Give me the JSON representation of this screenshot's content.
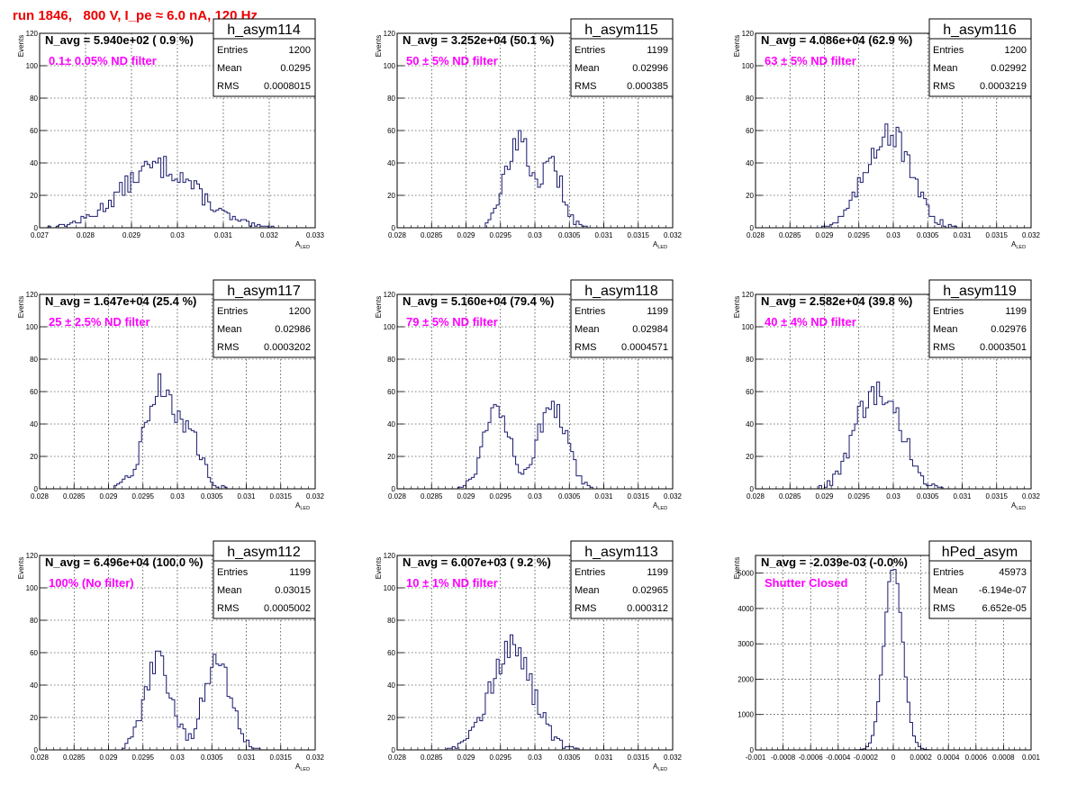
{
  "page_title": "run 1846,   800 V, I_pe ≈ 6.0 nA, 120 Hz",
  "chart_data": [
    {
      "type": "histogram",
      "name": "h_asym114",
      "ylabel": "Events",
      "xlabel": "A_LED",
      "nav": "N_avg = 5.940e+02 ( 0.9 %)",
      "filter": "0.1± 0.05% ND filter",
      "stats": {
        "Entries": "1200",
        "Mean": "0.0295",
        "RMS": "0.0008015"
      },
      "xlim": [
        0.027,
        0.033
      ],
      "ylim": [
        0,
        120
      ],
      "xticks": [
        "0.027",
        "0.028",
        "0.029",
        "0.03",
        "0.031",
        "0.032",
        "0.033"
      ],
      "yticks": [
        "0",
        "20",
        "40",
        "60",
        "80",
        "100",
        "120"
      ],
      "peaks": [
        {
          "mu": 0.0296,
          "sigma": 0.00082,
          "amp": 38
        }
      ]
    },
    {
      "type": "histogram",
      "name": "h_asym115",
      "ylabel": "Events",
      "xlabel": "A_LED",
      "nav": "N_avg = 3.252e+04 (50.1 %)",
      "filter": "50 ± 5% ND filter",
      "stats": {
        "Entries": "1199",
        "Mean": "0.02996",
        "RMS": "0.000385"
      },
      "xlim": [
        0.028,
        0.032
      ],
      "ylim": [
        0,
        120
      ],
      "xticks": [
        "0.028",
        "0.0285",
        "0.029",
        "0.0295",
        "0.03",
        "0.0305",
        "0.031",
        "0.0315",
        "0.032"
      ],
      "yticks": [
        "0",
        "20",
        "40",
        "60",
        "80",
        "100",
        "120"
      ],
      "peaks": [
        {
          "mu": 0.02975,
          "sigma": 0.00018,
          "amp": 55
        },
        {
          "mu": 0.03025,
          "sigma": 0.00016,
          "amp": 36
        }
      ]
    },
    {
      "type": "histogram",
      "name": "h_asym116",
      "ylabel": "Events",
      "xlabel": "A_LED",
      "nav": "N_avg = 4.086e+04 (62.9 %)",
      "filter": "63 ± 5% ND filter",
      "stats": {
        "Entries": "1200",
        "Mean": "0.02992",
        "RMS": "0.0003219"
      },
      "xlim": [
        0.028,
        0.032
      ],
      "ylim": [
        0,
        120
      ],
      "xticks": [
        "0.028",
        "0.0285",
        "0.029",
        "0.0295",
        "0.03",
        "0.0305",
        "0.031",
        "0.0315",
        "0.032"
      ],
      "yticks": [
        "0",
        "20",
        "40",
        "60",
        "80",
        "100",
        "120"
      ],
      "peaks": [
        {
          "mu": 0.02992,
          "sigma": 0.00032,
          "amp": 60
        }
      ]
    },
    {
      "type": "histogram",
      "name": "h_asym117",
      "ylabel": "Events",
      "xlabel": "A_LED",
      "nav": "N_avg = 1.647e+04 (25.4 %)",
      "filter": "25 ± 2.5% ND filter",
      "stats": {
        "Entries": "1200",
        "Mean": "0.02986",
        "RMS": "0.0003202"
      },
      "xlim": [
        0.028,
        0.032
      ],
      "ylim": [
        0,
        120
      ],
      "xticks": [
        "0.028",
        "0.0285",
        "0.029",
        "0.0295",
        "0.03",
        "0.0305",
        "0.031",
        "0.0315",
        "0.032"
      ],
      "yticks": [
        "0",
        "20",
        "40",
        "60",
        "80",
        "100",
        "120"
      ],
      "peaks": [
        {
          "mu": 0.02975,
          "sigma": 0.00022,
          "amp": 62
        },
        {
          "mu": 0.0302,
          "sigma": 0.00018,
          "amp": 26
        }
      ]
    },
    {
      "type": "histogram",
      "name": "h_asym118",
      "ylabel": "Events",
      "xlabel": "A_LED",
      "nav": "N_avg = 5.160e+04 (79.4 %)",
      "filter": "79 ± 5% ND filter",
      "stats": {
        "Entries": "1199",
        "Mean": "0.02984",
        "RMS": "0.0004571"
      },
      "xlim": [
        0.028,
        0.032
      ],
      "ylim": [
        0,
        120
      ],
      "xticks": [
        "0.028",
        "0.0285",
        "0.029",
        "0.0295",
        "0.03",
        "0.0305",
        "0.031",
        "0.0315",
        "0.032"
      ],
      "yticks": [
        "0",
        "20",
        "40",
        "60",
        "80",
        "100",
        "120"
      ],
      "peaks": [
        {
          "mu": 0.02945,
          "sigma": 0.00019,
          "amp": 52
        },
        {
          "mu": 0.03025,
          "sigma": 0.0002,
          "amp": 52
        }
      ]
    },
    {
      "type": "histogram",
      "name": "h_asym119",
      "ylabel": "Events",
      "xlabel": "A_LED",
      "nav": "N_avg = 2.582e+04 (39.8 %)",
      "filter": "40 ± 4% ND filter",
      "stats": {
        "Entries": "1199",
        "Mean": "0.02976",
        "RMS": "0.0003501"
      },
      "xlim": [
        0.028,
        0.032
      ],
      "ylim": [
        0,
        120
      ],
      "xticks": [
        "0.028",
        "0.0285",
        "0.029",
        "0.0295",
        "0.03",
        "0.0305",
        "0.031",
        "0.0315",
        "0.032"
      ],
      "yticks": [
        "0",
        "20",
        "40",
        "60",
        "80",
        "100",
        "120"
      ],
      "peaks": [
        {
          "mu": 0.02965,
          "sigma": 0.00025,
          "amp": 50
        },
        {
          "mu": 0.03005,
          "sigma": 0.00022,
          "amp": 30
        }
      ]
    },
    {
      "type": "histogram",
      "name": "h_asym112",
      "ylabel": "Events",
      "xlabel": "A_LED",
      "nav": "N_avg = 6.496e+04 (100.0 %)",
      "filter": "100% (No filter)",
      "stats": {
        "Entries": "1199",
        "Mean": "0.03015",
        "RMS": "0.0005002"
      },
      "xlim": [
        0.028,
        0.032
      ],
      "ylim": [
        0,
        120
      ],
      "xticks": [
        "0.028",
        "0.0285",
        "0.029",
        "0.0295",
        "0.03",
        "0.0305",
        "0.031",
        "0.0315",
        "0.032"
      ],
      "yticks": [
        "0",
        "20",
        "40",
        "60",
        "80",
        "100",
        "120"
      ],
      "peaks": [
        {
          "mu": 0.02972,
          "sigma": 0.00019,
          "amp": 55
        },
        {
          "mu": 0.03058,
          "sigma": 0.00019,
          "amp": 57
        }
      ]
    },
    {
      "type": "histogram",
      "name": "h_asym113",
      "ylabel": "Events",
      "xlabel": "A_LED",
      "nav": "N_avg = 6.007e+03 ( 9.2 %)",
      "filter": "10 ± 1% ND filter",
      "stats": {
        "Entries": "1199",
        "Mean": "0.02965",
        "RMS": "0.000312"
      },
      "xlim": [
        0.028,
        0.032
      ],
      "ylim": [
        0,
        120
      ],
      "xticks": [
        "0.028",
        "0.0285",
        "0.029",
        "0.0295",
        "0.03",
        "0.0305",
        "0.031",
        "0.0315",
        "0.032"
      ],
      "yticks": [
        "0",
        "20",
        "40",
        "60",
        "80",
        "100",
        "120"
      ],
      "peaks": [
        {
          "mu": 0.02965,
          "sigma": 0.00031,
          "amp": 62
        }
      ]
    },
    {
      "type": "histogram",
      "name": "hPed_asym",
      "ylabel": "Events",
      "xlabel": "",
      "nav": "N_avg = -2.039e-03 (-0.0%)",
      "filter": "Shutter Closed",
      "stats": {
        "Entries": "45973",
        "Mean": "-6.194e-07",
        "RMS": "6.652e-05"
      },
      "xlim": [
        -0.001,
        0.001
      ],
      "ylim": [
        0,
        5500
      ],
      "xticks": [
        "-0.001",
        "-0.0008",
        "-0.0006",
        "-0.0004",
        "-0.0002",
        "0",
        "0.0002",
        "0.0004",
        "0.0006",
        "0.0008",
        "0.001"
      ],
      "yticks": [
        "0",
        "1000",
        "2000",
        "3000",
        "4000",
        "5000"
      ],
      "peaks": [
        {
          "mu": 0.0,
          "sigma": 6.652e-05,
          "amp": 5200
        }
      ]
    }
  ]
}
